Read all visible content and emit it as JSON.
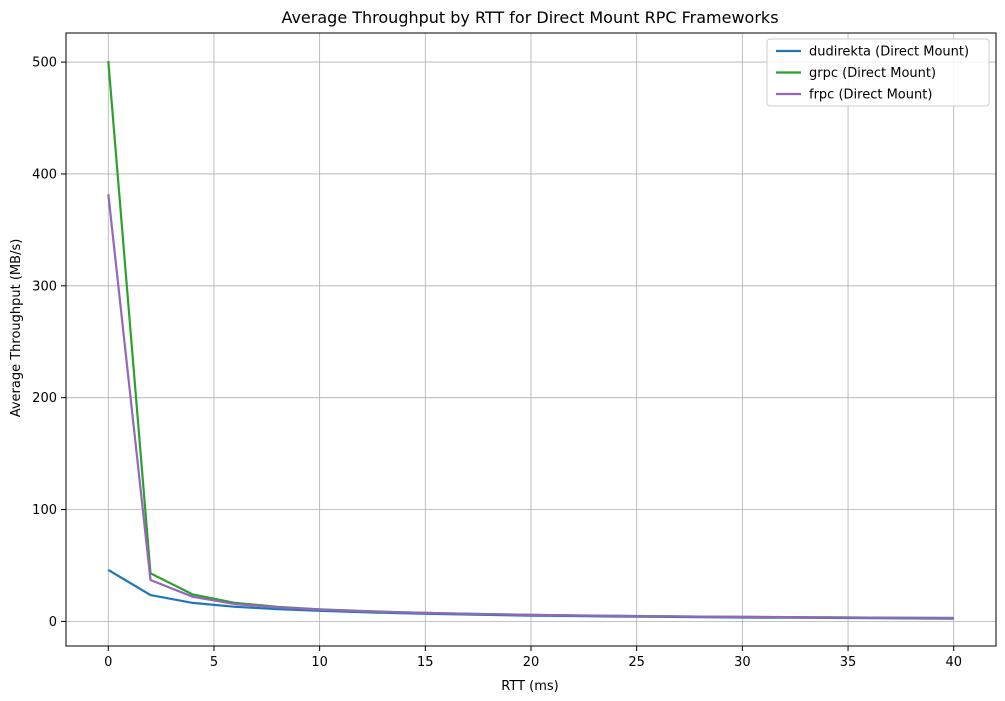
{
  "chart_data": {
    "type": "line",
    "title": "Average Throughput by RTT for Direct Mount RPC Frameworks",
    "xlabel": "RTT (ms)",
    "ylabel": "Average Throughput (MB/s)",
    "xlim": [
      -2,
      42
    ],
    "ylim": [
      -22,
      526
    ],
    "xticks": [
      0,
      5,
      10,
      15,
      20,
      25,
      30,
      35,
      40
    ],
    "yticks": [
      0,
      100,
      200,
      300,
      400,
      500
    ],
    "grid": true,
    "legend_position": "top-right",
    "x": [
      0,
      2,
      4,
      6,
      8,
      10,
      12,
      14,
      16,
      18,
      20,
      22,
      24,
      26,
      28,
      30,
      32,
      34,
      36,
      38,
      40
    ],
    "series": [
      {
        "name": "dudirekta (Direct Mount)",
        "color": "#1f77b4",
        "values": [
          46,
          23.5,
          16.5,
          13,
          11,
          9.5,
          8.2,
          7.2,
          6.4,
          5.8,
          5.2,
          4.8,
          4.4,
          4.1,
          3.8,
          3.5,
          3.3,
          3.1,
          2.9,
          2.7,
          2.5
        ]
      },
      {
        "name": "grpc (Direct Mount)",
        "color": "#2ca02c",
        "values": [
          501,
          43,
          24,
          16.5,
          13,
          10.8,
          9.3,
          8.1,
          7.2,
          6.5,
          5.9,
          5.4,
          5,
          4.6,
          4.3,
          4,
          3.8,
          3.6,
          3.4,
          3.2,
          3
        ]
      },
      {
        "name": "frpc (Direct Mount)",
        "color": "#9467bd",
        "values": [
          382,
          37,
          22,
          15.5,
          12.5,
          10.5,
          9,
          8,
          7.1,
          6.4,
          5.8,
          5.3,
          4.9,
          4.6,
          4.3,
          4,
          3.8,
          3.6,
          3.4,
          3.2,
          3
        ]
      }
    ]
  }
}
